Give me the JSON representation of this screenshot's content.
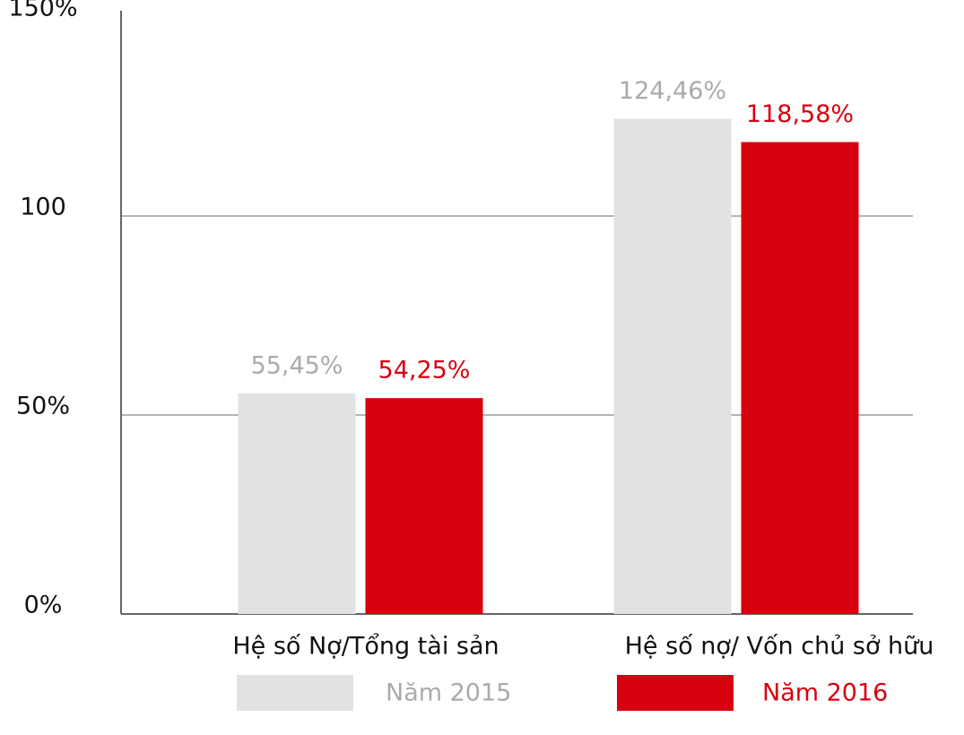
{
  "chart_data": {
    "type": "bar",
    "categories": [
      "Hệ số Nợ/Tổng tài sản",
      "Hệ số nợ/ Vốn chủ sở hữu"
    ],
    "series": [
      {
        "name": "Năm 2015",
        "color": "#e1e2e4",
        "label_color": "#aaaaaa",
        "values": [
          55.45,
          124.46
        ],
        "value_labels": [
          "55,45%",
          "124,46%"
        ]
      },
      {
        "name": "Năm 2016",
        "color": "#d7000f",
        "label_color": "#d7000f",
        "values": [
          54.25,
          118.58
        ],
        "value_labels": [
          "54,25%",
          "118,58%"
        ]
      }
    ],
    "ylim": [
      0,
      150
    ],
    "yticks": [
      {
        "value": 0,
        "label": "0%"
      },
      {
        "value": 50,
        "label": "50%"
      },
      100,
      {
        "value": 150,
        "label": "150%"
      }
    ],
    "grid": true
  }
}
